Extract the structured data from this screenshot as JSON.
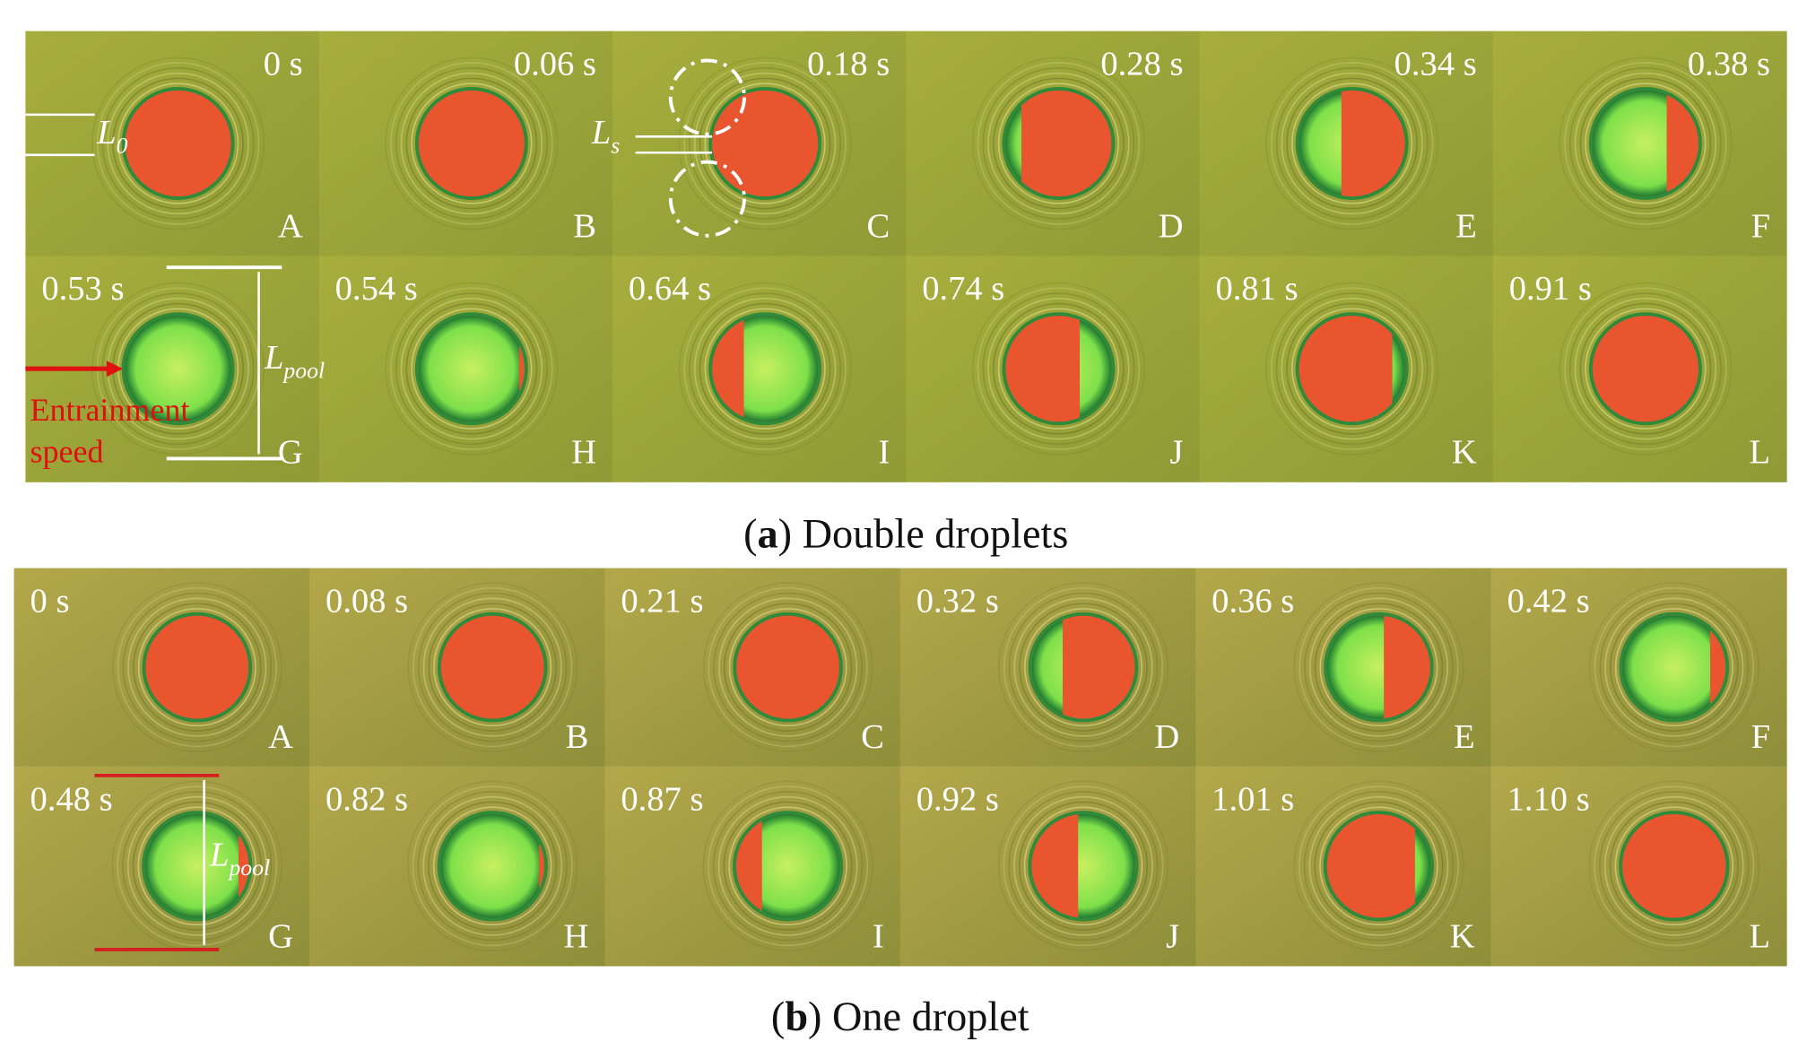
{
  "figures": [
    {
      "caption": {
        "open": "(",
        "label": "a",
        "close": ")",
        "text": " Double droplets"
      },
      "panels": [
        {
          "time": "0 s",
          "letter": "A"
        },
        {
          "time": "0.06 s",
          "letter": "B"
        },
        {
          "time": "0.18 s",
          "letter": "C"
        },
        {
          "time": "0.28 s",
          "letter": "D"
        },
        {
          "time": "0.34 s",
          "letter": "E"
        },
        {
          "time": "0.38 s",
          "letter": "F"
        },
        {
          "time": "0.53 s",
          "letter": "G"
        },
        {
          "time": "0.54 s",
          "letter": "H"
        },
        {
          "time": "0.64 s",
          "letter": "I"
        },
        {
          "time": "0.74 s",
          "letter": "J"
        },
        {
          "time": "0.81 s",
          "letter": "K"
        },
        {
          "time": "0.91 s",
          "letter": "L"
        }
      ],
      "annotations": {
        "l0": {
          "main": "L",
          "sub": "0"
        },
        "ls": {
          "main": "L",
          "sub": "s"
        },
        "lpool": {
          "main": "L",
          "sub": "pool"
        },
        "speed": [
          "Entrainment",
          "speed"
        ]
      }
    },
    {
      "caption": {
        "open": "(",
        "label": "b",
        "close": ")",
        "text": " One droplet"
      },
      "panels": [
        {
          "time": "0 s",
          "letter": "A"
        },
        {
          "time": "0.08 s",
          "letter": "B"
        },
        {
          "time": "0.21 s",
          "letter": "C"
        },
        {
          "time": "0.32 s",
          "letter": "D"
        },
        {
          "time": "0.36 s",
          "letter": "E"
        },
        {
          "time": "0.42 s",
          "letter": "F"
        },
        {
          "time": "0.48 s",
          "letter": "G"
        },
        {
          "time": "0.82 s",
          "letter": "H"
        },
        {
          "time": "0.87 s",
          "letter": "I"
        },
        {
          "time": "0.92 s",
          "letter": "J"
        },
        {
          "time": "1.01 s",
          "letter": "K"
        },
        {
          "time": "1.10 s",
          "letter": "L"
        }
      ],
      "annotations": {
        "lpool": {
          "main": "L",
          "sub": "pool"
        }
      }
    }
  ]
}
